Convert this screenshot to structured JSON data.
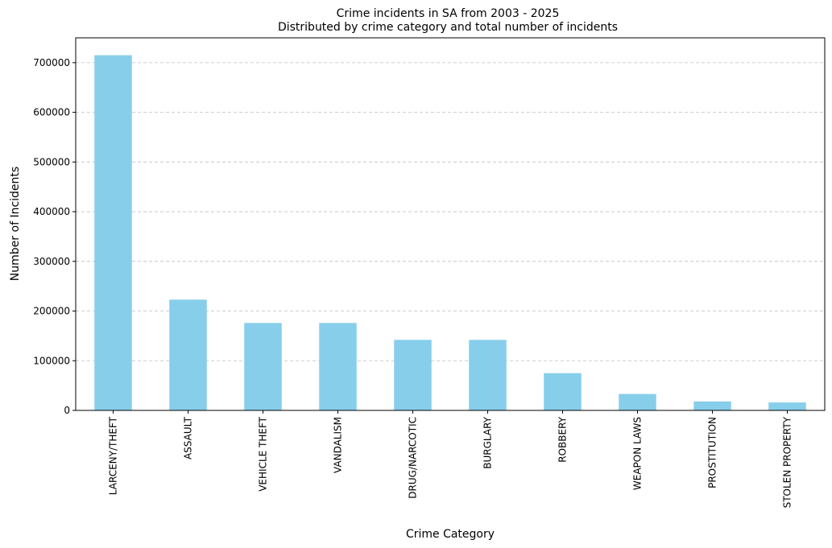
{
  "chart_data": {
    "type": "bar",
    "title": "Crime incidents in SA from 2003 - 2025",
    "subtitle": "Distributed by crime category and total number of incidents",
    "xlabel": "Crime Category",
    "ylabel": "Number of Incidents",
    "categories": [
      "LARCENY/THEFT",
      "ASSAULT",
      "VEHICLE THEFT",
      "VANDALISM",
      "DRUG/NARCOTIC",
      "BURGLARY",
      "ROBBERY",
      "WEAPON LAWS",
      "PROSTITUTION",
      "STOLEN PROPERTY"
    ],
    "values": [
      715000,
      223000,
      176000,
      176000,
      142000,
      142000,
      75000,
      33000,
      18000,
      16000
    ],
    "ylim": [
      0,
      750000
    ],
    "yticks": [
      0,
      100000,
      200000,
      300000,
      400000,
      500000,
      600000,
      700000
    ],
    "ytick_labels": [
      "0",
      "100000",
      "200000",
      "300000",
      "400000",
      "500000",
      "600000",
      "700000"
    ],
    "grid": "y-dashed",
    "bar_color": "#87ceeb"
  }
}
